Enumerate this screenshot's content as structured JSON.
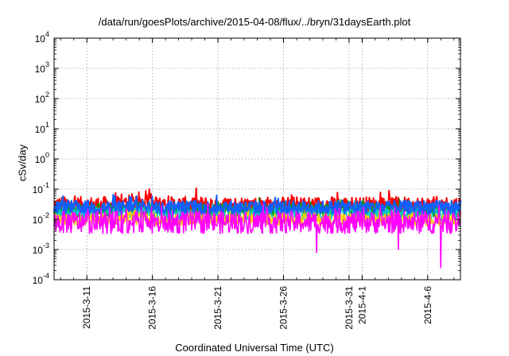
{
  "chart_data": {
    "type": "line",
    "title": "/data/run/goesPlots/archive/2015-04-08/flux/../bryn/31daysEarth.plot",
    "xlabel": "Coordinated Universal Time (UTC)",
    "ylabel": "cSv/day",
    "yscale": "log",
    "ylim": [
      0.0001,
      10000
    ],
    "y_ticks": [
      {
        "exp": -4,
        "base": "10",
        "sup": "-4"
      },
      {
        "exp": -3,
        "base": "10",
        "sup": "-3"
      },
      {
        "exp": -2,
        "base": "10",
        "sup": "-2"
      },
      {
        "exp": -1,
        "base": "10",
        "sup": "-1"
      },
      {
        "exp": 0,
        "base": "10",
        "sup": "0"
      },
      {
        "exp": 1,
        "base": "10",
        "sup": "1"
      },
      {
        "exp": 2,
        "base": "10",
        "sup": "2"
      },
      {
        "exp": 3,
        "base": "10",
        "sup": "3"
      },
      {
        "exp": 4,
        "base": "10",
        "sup": "4"
      }
    ],
    "xlim": [
      "2015-03-08T12:00",
      "2015-04-08T12:00"
    ],
    "x_ticks": [
      {
        "date": "2015-03-11",
        "label": "2015-3-11"
      },
      {
        "date": "2015-03-16",
        "label": "2015-3-16"
      },
      {
        "date": "2015-03-21",
        "label": "2015-3-21"
      },
      {
        "date": "2015-03-26",
        "label": "2015-3-26"
      },
      {
        "date": "2015-03-31",
        "label": "2015-3-31"
      },
      {
        "date": "2015-04-01",
        "label": "2015-4-1"
      },
      {
        "date": "2015-04-06",
        "label": "2015-4-6"
      }
    ],
    "grid": true,
    "series": [
      {
        "color": "#ff0000",
        "base": 0.03,
        "spread": 0.55
      },
      {
        "color": "#00a000",
        "base": 0.02,
        "spread": 0.45
      },
      {
        "color": "#00c8c8",
        "base": 0.015,
        "spread": 0.45
      },
      {
        "color": "#ffcc00",
        "base": 0.01,
        "spread": 0.4
      },
      {
        "color": "#1060ff",
        "base": 0.025,
        "spread": 0.45
      },
      {
        "color": "#ff00ff",
        "base": 0.008,
        "spread": 0.75
      }
    ],
    "notable_values": [
      {
        "date": "2015-03-15T18:00",
        "value": 0.1,
        "series_color": "#ff0000"
      },
      {
        "date": "2015-03-28T12:00",
        "value": 0.0008,
        "series_color": "#ff00ff"
      },
      {
        "date": "2015-04-03T18:00",
        "value": 0.001,
        "series_color": "#ff00ff"
      },
      {
        "date": "2015-04-07T00:00",
        "value": 0.00025,
        "series_color": "#ff00ff"
      }
    ]
  }
}
